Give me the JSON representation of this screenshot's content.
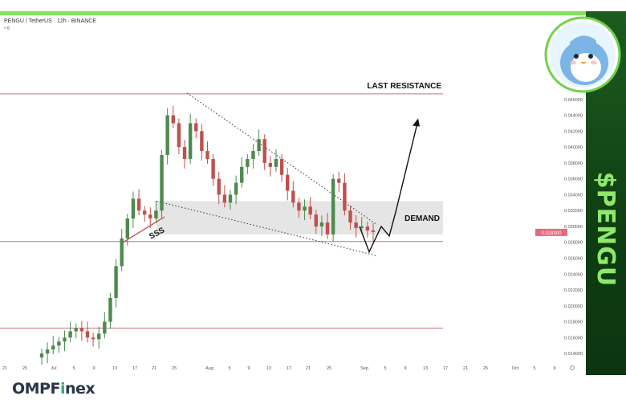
{
  "header": {
    "symbol_line": "PENGU / TetherUS · 12h · BINANCE",
    "indicator_line": "• 6"
  },
  "badge": {
    "ticker": "$PENGU",
    "mascot": "penguin-avatar-icon"
  },
  "brand": {
    "name_main": "OMPF",
    "name_accent": "i",
    "name_rest": "nex"
  },
  "colors": {
    "frame": "#86e25a",
    "band": "#133f15",
    "band_text": "#8ee86a",
    "up_candle": "#4e8a4e",
    "down_candle": "#c0504d",
    "level_line": "#d4707a",
    "price_tag": "#e8697a",
    "demand_zone": "#e5e5e5"
  },
  "chart_data": {
    "type": "candlestick",
    "y_axis": {
      "range": [
        0.013,
        0.0478
      ],
      "ticks": [
        "0.046000",
        "0.044000",
        "0.042000",
        "0.040000",
        "0.038000",
        "0.036000",
        "0.034000",
        "0.032000",
        "0.030000",
        "0.028000",
        "0.026000",
        "0.024000",
        "0.022000",
        "0.020000",
        "0.018000",
        "0.016000",
        "0.014000"
      ]
    },
    "x_axis": {
      "ticks": [
        "21",
        "25",
        "Jul",
        "5",
        "9",
        "13",
        "17",
        "21",
        "25",
        "Aug",
        "5",
        "9",
        "13",
        "17",
        "21",
        "25",
        "Sep",
        "5",
        "9",
        "13",
        "17",
        "21",
        "25",
        "Oct",
        "5",
        "9"
      ]
    },
    "last_price": 0.0293,
    "levels": [
      {
        "name": "last-resistance",
        "value": 0.0467,
        "label": "LAST RESISTANCE"
      },
      {
        "name": "support",
        "value": 0.0281,
        "label": ""
      },
      {
        "name": "low-support",
        "value": 0.0172,
        "label": ""
      }
    ],
    "zones": [
      {
        "name": "demand",
        "from": 0.029,
        "to": 0.0332,
        "label": "DEMAND"
      }
    ],
    "annotations": [
      {
        "label": "SSS",
        "type": "sfp-marker"
      }
    ],
    "candles_close_path": [
      0.014,
      0.0145,
      0.015,
      0.0155,
      0.016,
      0.0168,
      0.0172,
      0.0168,
      0.016,
      0.0158,
      0.0165,
      0.018,
      0.021,
      0.025,
      0.0285,
      0.031,
      0.0335,
      0.032,
      0.0315,
      0.031,
      0.032,
      0.039,
      0.044,
      0.043,
      0.04,
      0.0385,
      0.043,
      0.042,
      0.0395,
      0.0385,
      0.036,
      0.034,
      0.033,
      0.034,
      0.0355,
      0.0375,
      0.0385,
      0.0395,
      0.041,
      0.038,
      0.0375,
      0.0385,
      0.0365,
      0.0345,
      0.033,
      0.032,
      0.0325,
      0.0315,
      0.03,
      0.0305,
      0.029,
      0.036,
      0.0355,
      0.032,
      0.0305,
      0.0298,
      0.03,
      0.0295,
      0.0293
    ]
  }
}
